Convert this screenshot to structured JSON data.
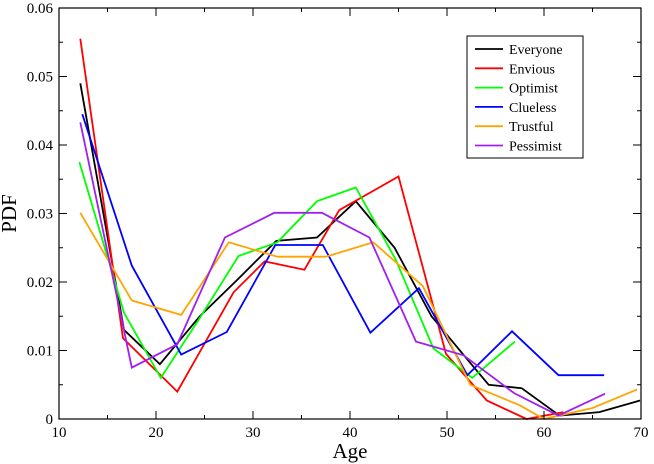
{
  "chart_data": {
    "type": "line",
    "title": "",
    "xlabel": "Age",
    "ylabel": "PDF",
    "xlim": [
      10,
      70
    ],
    "ylim": [
      0,
      0.06
    ],
    "x_ticks": [
      10,
      20,
      30,
      40,
      50,
      60,
      70
    ],
    "x_tick_labels": [
      "10",
      "20",
      "30",
      "40",
      "50",
      "60",
      "70"
    ],
    "y_ticks": [
      0,
      0.01,
      0.02,
      0.03,
      0.04,
      0.05,
      0.06
    ],
    "y_tick_labels": [
      "0",
      "0.01",
      "0.02",
      "0.03",
      "0.04",
      "0.05",
      "0.06"
    ],
    "grid": false,
    "legend_position": "top-right",
    "series": [
      {
        "name": "Everyone",
        "color": "#000000",
        "x": [
          12.2,
          16.7,
          20.4,
          24.5,
          28.5,
          32.4,
          36.6,
          40.6,
          44.6,
          48.4,
          52.5,
          54.3,
          57.7,
          61.6,
          65.7,
          69.9
        ],
        "y": [
          0.049,
          0.013,
          0.008,
          0.015,
          0.0205,
          0.026,
          0.0265,
          0.0318,
          0.025,
          0.015,
          0.008,
          0.005,
          0.0045,
          0.0005,
          0.001,
          0.0027
        ]
      },
      {
        "name": "Envious",
        "color": "#ff0000",
        "x": [
          12.2,
          16.6,
          22.2,
          28.0,
          31.2,
          35.3,
          38.9,
          45.0,
          49.9,
          54.1,
          58.2,
          62.0
        ],
        "y": [
          0.0555,
          0.0118,
          0.004,
          0.0185,
          0.023,
          0.0218,
          0.0305,
          0.0354,
          0.0095,
          0.0027,
          0.0,
          0.001
        ]
      },
      {
        "name": "Optimist",
        "color": "#00ff00",
        "x": [
          12.1,
          16.7,
          20.5,
          24.4,
          28.5,
          32.5,
          36.6,
          40.6,
          44.7,
          48.6,
          52.6,
          57.0
        ],
        "y": [
          0.0375,
          0.0155,
          0.006,
          0.0145,
          0.0238,
          0.0258,
          0.0318,
          0.0338,
          0.0233,
          0.0103,
          0.006,
          0.0113
        ]
      },
      {
        "name": "Clueless",
        "color": "#0000ff",
        "x": [
          12.4,
          17.5,
          22.6,
          27.3,
          32.3,
          37.2,
          42.1,
          47.1,
          52.1,
          56.7,
          61.5,
          66.2
        ],
        "y": [
          0.0445,
          0.0224,
          0.0094,
          0.0127,
          0.0254,
          0.0254,
          0.0126,
          0.0191,
          0.0064,
          0.0128,
          0.0064,
          0.0064
        ]
      },
      {
        "name": "Trustful",
        "color": "#ffa500",
        "x": [
          12.2,
          17.5,
          22.6,
          27.5,
          32.5,
          37.5,
          42.4,
          47.5,
          52.4,
          57.5,
          60.0,
          65.0,
          69.6
        ],
        "y": [
          0.0301,
          0.0173,
          0.0152,
          0.0258,
          0.0237,
          0.0237,
          0.0258,
          0.0194,
          0.005,
          0.002,
          0.0,
          0.0016,
          0.0043
        ]
      },
      {
        "name": "Pessimist",
        "color": "#a020f0",
        "x": [
          12.2,
          17.5,
          22.2,
          27.1,
          32.2,
          37.1,
          42.0,
          46.8,
          51.7,
          56.9,
          61.5,
          66.3
        ],
        "y": [
          0.0433,
          0.0075,
          0.0109,
          0.0265,
          0.0301,
          0.0301,
          0.0265,
          0.0113,
          0.0093,
          0.0038,
          0.0005,
          0.0037
        ]
      }
    ]
  }
}
